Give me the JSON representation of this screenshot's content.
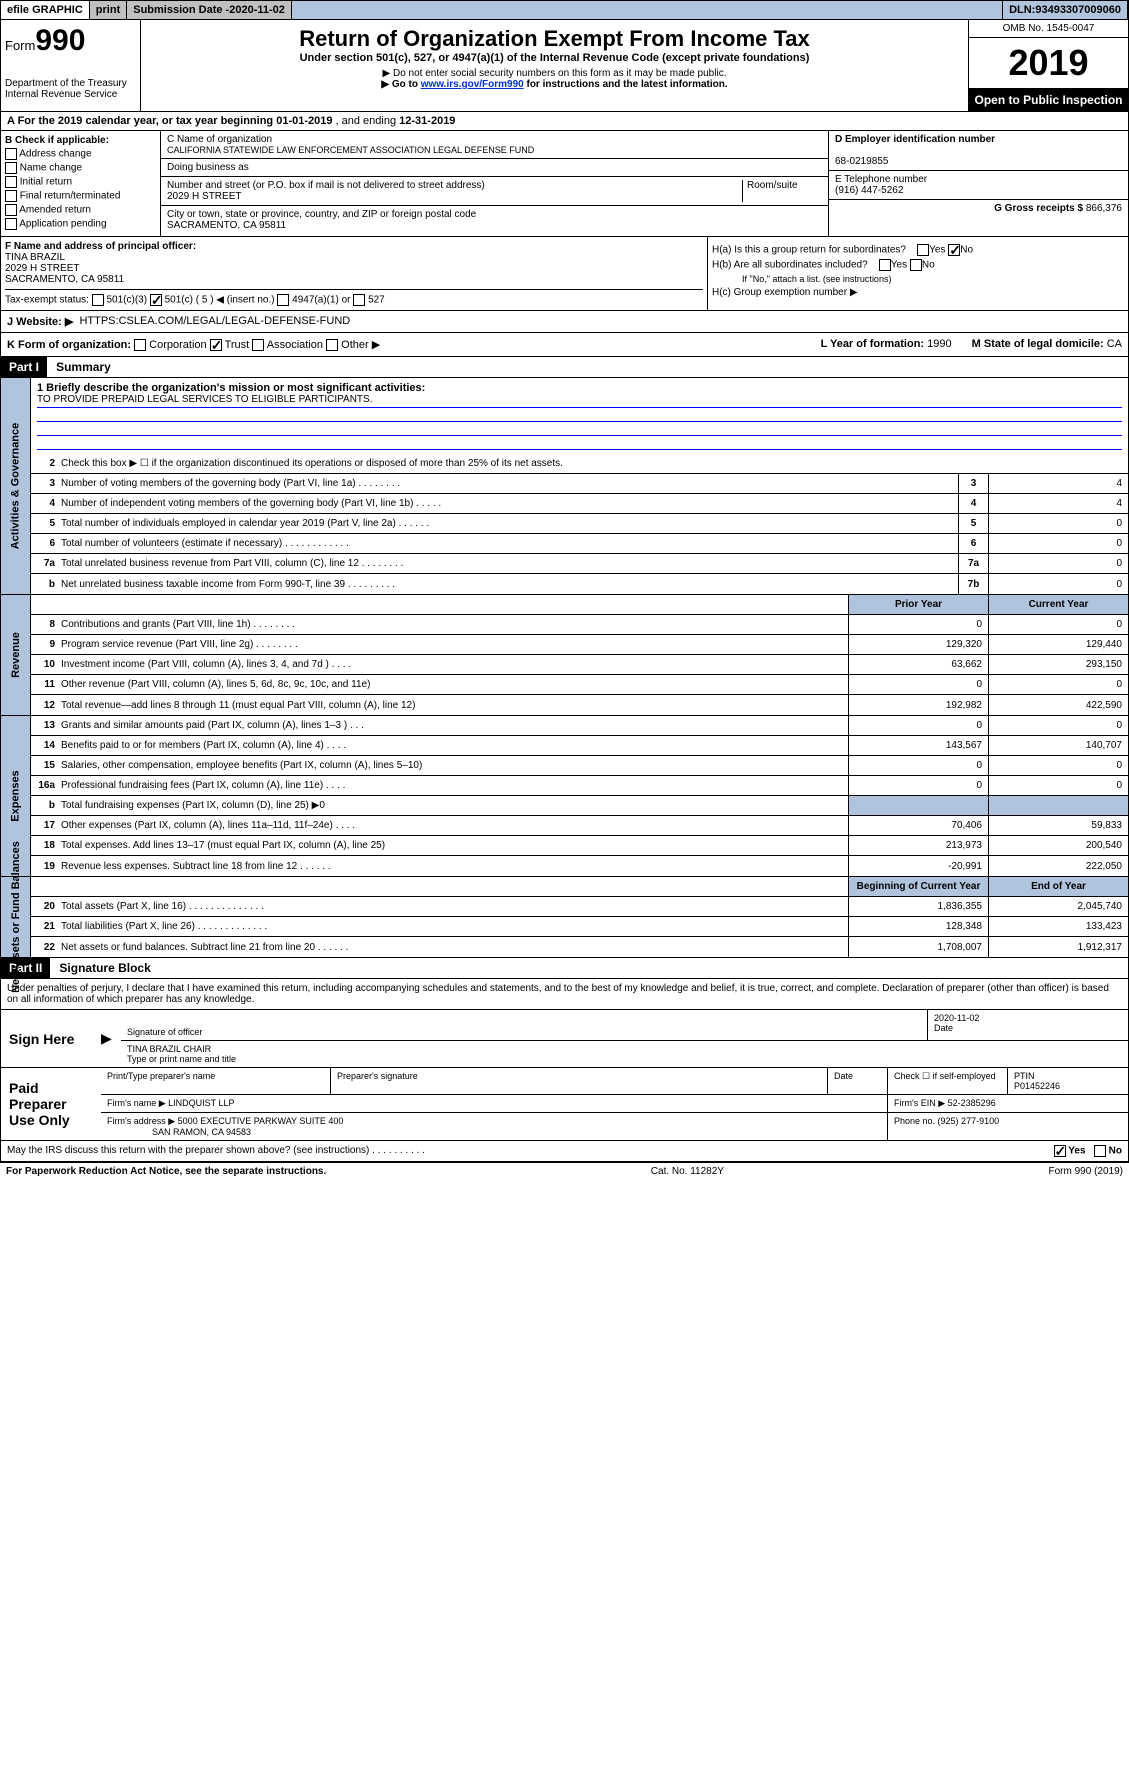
{
  "topbar": {
    "efile": "efile GRAPHIC",
    "print": "print",
    "submission_label": "Submission Date - ",
    "submission_date": "2020-11-02",
    "dln_label": "DLN: ",
    "dln": "93493307009060"
  },
  "header": {
    "form_label": "Form",
    "form_number": "990",
    "dept": "Department of the Treasury\nInternal Revenue Service",
    "title": "Return of Organization Exempt From Income Tax",
    "subtitle": "Under section 501(c), 527, or 4947(a)(1) of the Internal Revenue Code (except private foundations)",
    "note1": "▶ Do not enter social security numbers on this form as it may be made public.",
    "note2_pre": "▶ Go to ",
    "note2_link": "www.irs.gov/Form990",
    "note2_post": " for instructions and the latest information.",
    "omb": "OMB No. 1545-0047",
    "year": "2019",
    "open_public": "Open to Public Inspection"
  },
  "row_a": {
    "text_pre": "A For the 2019 calendar year, or tax year beginning ",
    "begin": "01-01-2019",
    "mid": " , and ending ",
    "end": "12-31-2019"
  },
  "col_b": {
    "header": "B Check if applicable:",
    "items": [
      "Address change",
      "Name change",
      "Initial return",
      "Final return/terminated",
      "Amended return",
      "Application pending"
    ]
  },
  "col_c": {
    "name_label": "C Name of organization",
    "name": "CALIFORNIA STATEWIDE LAW ENFORCEMENT ASSOCIATION LEGAL DEFENSE FUND",
    "dba_label": "Doing business as",
    "dba": "",
    "street_label": "Number and street (or P.O. box if mail is not delivered to street address)",
    "room_label": "Room/suite",
    "street": "2029 H STREET",
    "city_label": "City or town, state or province, country, and ZIP or foreign postal code",
    "city": "SACRAMENTO, CA  95811"
  },
  "col_de": {
    "d_label": "D Employer identification number",
    "ein": "68-0219855",
    "e_label": "E Telephone number",
    "phone": "(916) 447-5262",
    "g_label": "G Gross receipts $ ",
    "gross": "866,376"
  },
  "col_f": {
    "label": "F Name and address of principal officer:",
    "name": "TINA BRAZIL",
    "street": "2029 H STREET",
    "city": "SACRAMENTO, CA  95811",
    "tax_exempt_label": "Tax-exempt status:",
    "opts": [
      "501(c)(3)",
      "501(c) ( 5 ) ◀ (insert no.)",
      "4947(a)(1) or",
      "527"
    ]
  },
  "col_h": {
    "ha": "H(a)  Is this a group return for subordinates?",
    "hb": "H(b)  Are all subordinates included?",
    "hb_note": "If \"No,\" attach a list. (see instructions)",
    "hc": "H(c)  Group exemption number ▶",
    "yes": "Yes",
    "no": "No"
  },
  "row_j": {
    "label": "J   Website: ▶",
    "url": "HTTPS:CSLEA.COM/LEGAL/LEGAL-DEFENSE-FUND"
  },
  "row_k": {
    "label": "K Form of organization:",
    "opts": [
      "Corporation",
      "Trust",
      "Association",
      "Other ▶"
    ],
    "l_label": "L Year of formation: ",
    "l_val": "1990",
    "m_label": "M State of legal domicile: ",
    "m_val": "CA"
  },
  "part1": {
    "header": "Part I",
    "title": "Summary",
    "line1_label": "1  Briefly describe the organization's mission or most significant activities:",
    "mission": "TO PROVIDE PREPAID LEGAL SERVICES TO ELIGIBLE PARTICIPANTS.",
    "line2": "Check this box ▶ ☐  if the organization discontinued its operations or disposed of more than 25% of its net assets.",
    "governance_label": "Activities & Governance",
    "revenue_label": "Revenue",
    "expenses_label": "Expenses",
    "netassets_label": "Net Assets or Fund Balances",
    "prior_year": "Prior Year",
    "current_year": "Current Year",
    "begin_year": "Beginning of Current Year",
    "end_year": "End of Year",
    "lines_gov": [
      {
        "n": "3",
        "d": "Number of voting members of the governing body (Part VI, line 1a)  .   .   .   .   .   .   .   .",
        "b": "3",
        "v": "4"
      },
      {
        "n": "4",
        "d": "Number of independent voting members of the governing body (Part VI, line 1b)  .   .   .   .   .",
        "b": "4",
        "v": "4"
      },
      {
        "n": "5",
        "d": "Total number of individuals employed in calendar year 2019 (Part V, line 2a)  .   .   .   .   .   .",
        "b": "5",
        "v": "0"
      },
      {
        "n": "6",
        "d": "Total number of volunteers (estimate if necessary)  .   .   .   .   .   .   .   .   .   .   .   .",
        "b": "6",
        "v": "0"
      },
      {
        "n": "7a",
        "d": "Total unrelated business revenue from Part VIII, column (C), line 12  .   .   .   .   .   .   .   .",
        "b": "7a",
        "v": "0"
      },
      {
        "n": "b",
        "d": "Net unrelated business taxable income from Form 990-T, line 39  .   .   .   .   .   .   .   .   .",
        "b": "7b",
        "v": "0"
      }
    ],
    "lines_rev": [
      {
        "n": "8",
        "d": "Contributions and grants (Part VIII, line 1h)  .   .   .   .   .   .   .   .",
        "p": "0",
        "c": "0"
      },
      {
        "n": "9",
        "d": "Program service revenue (Part VIII, line 2g)  .   .   .   .   .   .   .   .",
        "p": "129,320",
        "c": "129,440"
      },
      {
        "n": "10",
        "d": "Investment income (Part VIII, column (A), lines 3, 4, and 7d )  .   .   .   .",
        "p": "63,662",
        "c": "293,150"
      },
      {
        "n": "11",
        "d": "Other revenue (Part VIII, column (A), lines 5, 6d, 8c, 9c, 10c, and 11e)",
        "p": "0",
        "c": "0"
      },
      {
        "n": "12",
        "d": "Total revenue—add lines 8 through 11 (must equal Part VIII, column (A), line 12)",
        "p": "192,982",
        "c": "422,590"
      }
    ],
    "lines_exp": [
      {
        "n": "13",
        "d": "Grants and similar amounts paid (Part IX, column (A), lines 1–3 )  .   .   .",
        "p": "0",
        "c": "0"
      },
      {
        "n": "14",
        "d": "Benefits paid to or for members (Part IX, column (A), line 4)  .   .   .   .",
        "p": "143,567",
        "c": "140,707"
      },
      {
        "n": "15",
        "d": "Salaries, other compensation, employee benefits (Part IX, column (A), lines 5–10)",
        "p": "0",
        "c": "0"
      },
      {
        "n": "16a",
        "d": "Professional fundraising fees (Part IX, column (A), line 11e)  .   .   .   .",
        "p": "0",
        "c": "0"
      },
      {
        "n": "b",
        "d": "Total fundraising expenses (Part IX, column (D), line 25) ▶0",
        "p": "",
        "c": "",
        "shaded": true
      },
      {
        "n": "17",
        "d": "Other expenses (Part IX, column (A), lines 11a–11d, 11f–24e)  .   .   .   .",
        "p": "70,406",
        "c": "59,833"
      },
      {
        "n": "18",
        "d": "Total expenses. Add lines 13–17 (must equal Part IX, column (A), line 25)",
        "p": "213,973",
        "c": "200,540"
      },
      {
        "n": "19",
        "d": "Revenue less expenses. Subtract line 18 from line 12  .   .   .   .   .   .",
        "p": "-20,991",
        "c": "222,050"
      }
    ],
    "lines_net": [
      {
        "n": "20",
        "d": "Total assets (Part X, line 16)  .   .   .   .   .   .   .   .   .   .   .   .   .   .",
        "p": "1,836,355",
        "c": "2,045,740"
      },
      {
        "n": "21",
        "d": "Total liabilities (Part X, line 26)  .   .   .   .   .   .   .   .   .   .   .   .   .",
        "p": "128,348",
        "c": "133,423"
      },
      {
        "n": "22",
        "d": "Net assets or fund balances. Subtract line 21 from line 20  .   .   .   .   .   .",
        "p": "1,708,007",
        "c": "1,912,317"
      }
    ]
  },
  "part2": {
    "header": "Part II",
    "title": "Signature Block",
    "penalties": "Under penalties of perjury, I declare that I have examined this return, including accompanying schedules and statements, and to the best of my knowledge and belief, it is true, correct, and complete. Declaration of preparer (other than officer) is based on all information of which preparer has any knowledge.",
    "sign_here": "Sign Here",
    "sig_officer": "Signature of officer",
    "sig_date": "2020-11-02",
    "date_label": "Date",
    "officer_name": "TINA BRAZIL CHAIR",
    "type_label": "Type or print name and title",
    "paid_prep": "Paid Preparer Use Only",
    "prep_name_label": "Print/Type preparer's name",
    "prep_sig_label": "Preparer's signature",
    "prep_date_label": "Date",
    "check_self": "Check ☐ if self-employed",
    "ptin_label": "PTIN",
    "ptin": "P01452246",
    "firm_name_label": "Firm's name     ▶",
    "firm_name": "LINDQUIST LLP",
    "firm_ein_label": "Firm's EIN ▶",
    "firm_ein": "52-2385296",
    "firm_addr_label": "Firm's address ▶",
    "firm_addr1": "5000 EXECUTIVE PARKWAY SUITE 400",
    "firm_addr2": "SAN RAMON, CA  94583",
    "phone_label": "Phone no. ",
    "phone": "(925) 277-9100",
    "discuss": "May the IRS discuss this return with the preparer shown above? (see instructions)  .   .   .   .   .   .   .   .   .   ."
  },
  "footer": {
    "paperwork": "For Paperwork Reduction Act Notice, see the separate instructions.",
    "catno": "Cat. No. 11282Y",
    "formno": "Form 990 (2019)"
  },
  "colors": {
    "header_blue": "#b0c4de",
    "black": "#000000",
    "link": "#0033cc"
  }
}
